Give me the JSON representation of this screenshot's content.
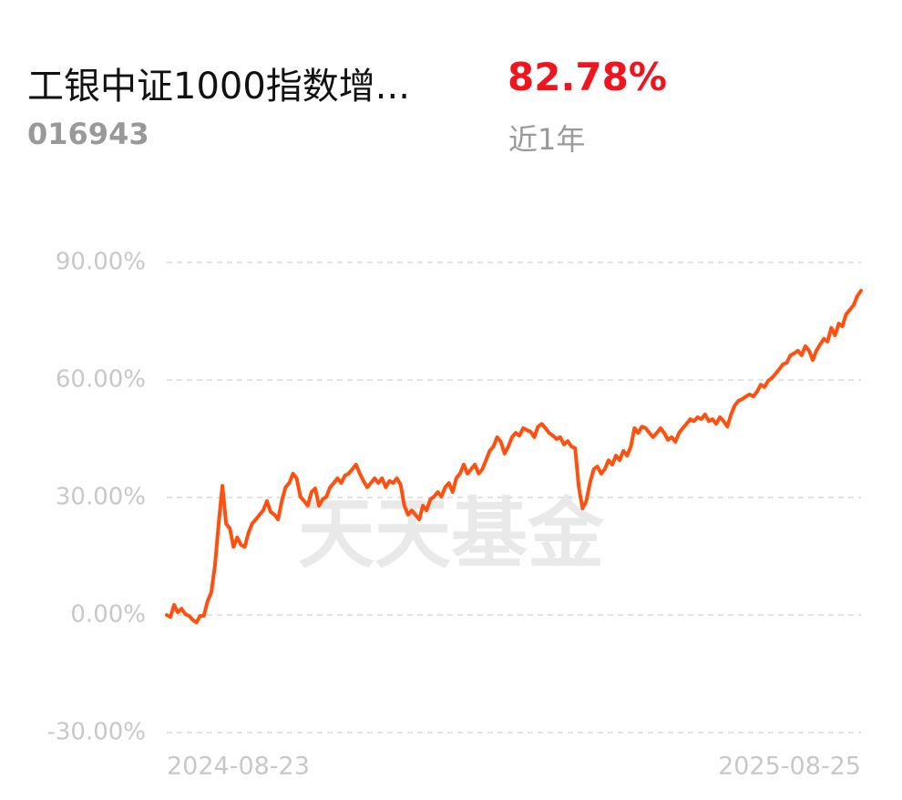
{
  "fund_name": "工银中证1000指数增...",
  "return_label": "82.78%",
  "fund_code": "016943",
  "period": "近1年",
  "chart_data": {
    "type": "line",
    "watermark": "天天基金",
    "x_start_label": "2024-08-23",
    "x_end_label": "2025-08-25",
    "ylim": [
      -30,
      90
    ],
    "yticks": [
      {
        "value": -30,
        "label": "-30.00%"
      },
      {
        "value": 0,
        "label": "0.00%"
      },
      {
        "value": 30,
        "label": "30.00%"
      },
      {
        "value": 60,
        "label": "60.00%"
      },
      {
        "value": 90,
        "label": "90.00%"
      }
    ],
    "grid": true,
    "series": [
      {
        "color": "#ff5010",
        "values": [
          0.0,
          -0.5,
          2.6,
          0.7,
          1.6,
          0.2,
          -0.2,
          -1.2,
          -1.9,
          -0.2,
          -0.2,
          3.5,
          5.8,
          12.8,
          23.3,
          33.0,
          23.3,
          22.1,
          17.4,
          19.8,
          17.9,
          17.4,
          20.9,
          23.3,
          24.4,
          25.6,
          26.7,
          29.1,
          26.3,
          25.6,
          24.4,
          29.1,
          32.6,
          33.7,
          36.1,
          34.9,
          30.2,
          29.1,
          27.9,
          31.4,
          32.3,
          27.9,
          29.5,
          30.2,
          32.6,
          33.7,
          34.9,
          33.7,
          35.6,
          36.1,
          37.2,
          38.4,
          36.1,
          34.2,
          32.6,
          33.7,
          34.9,
          33.7,
          34.9,
          32.6,
          34.2,
          33.7,
          34.9,
          33.3,
          27.9,
          25.6,
          26.7,
          25.6,
          24.4,
          27.9,
          26.7,
          29.5,
          30.2,
          31.4,
          30.2,
          32.6,
          33.7,
          31.4,
          34.9,
          36.1,
          38.4,
          36.1,
          37.2,
          38.4,
          36.1,
          37.2,
          39.5,
          41.9,
          43.0,
          45.4,
          44.2,
          41.2,
          43.0,
          45.4,
          46.5,
          45.8,
          47.7,
          47.2,
          46.8,
          45.4,
          48.1,
          48.8,
          47.7,
          46.5,
          45.8,
          44.9,
          45.4,
          43.5,
          44.4,
          43.0,
          42.6,
          32.6,
          27.2,
          29.1,
          33.7,
          37.2,
          37.9,
          36.1,
          37.2,
          39.5,
          38.4,
          40.7,
          39.5,
          41.9,
          40.7,
          43.0,
          47.7,
          46.5,
          48.1,
          47.7,
          46.5,
          45.4,
          46.5,
          47.7,
          46.5,
          44.7,
          45.4,
          44.2,
          46.5,
          47.7,
          48.8,
          50.0,
          49.5,
          50.5,
          50.0,
          51.2,
          49.5,
          50.0,
          48.8,
          50.5,
          49.5,
          48.1,
          51.2,
          53.5,
          54.7,
          55.1,
          55.8,
          56.3,
          55.8,
          57.0,
          58.8,
          58.2,
          59.8,
          60.5,
          61.6,
          62.8,
          64.0,
          64.4,
          66.3,
          66.8,
          67.5,
          66.3,
          68.6,
          67.5,
          65.1,
          67.5,
          69.1,
          70.5,
          69.8,
          73.3,
          71.4,
          74.4,
          73.7,
          76.8,
          77.9,
          79.1,
          81.4,
          82.78
        ]
      }
    ]
  }
}
